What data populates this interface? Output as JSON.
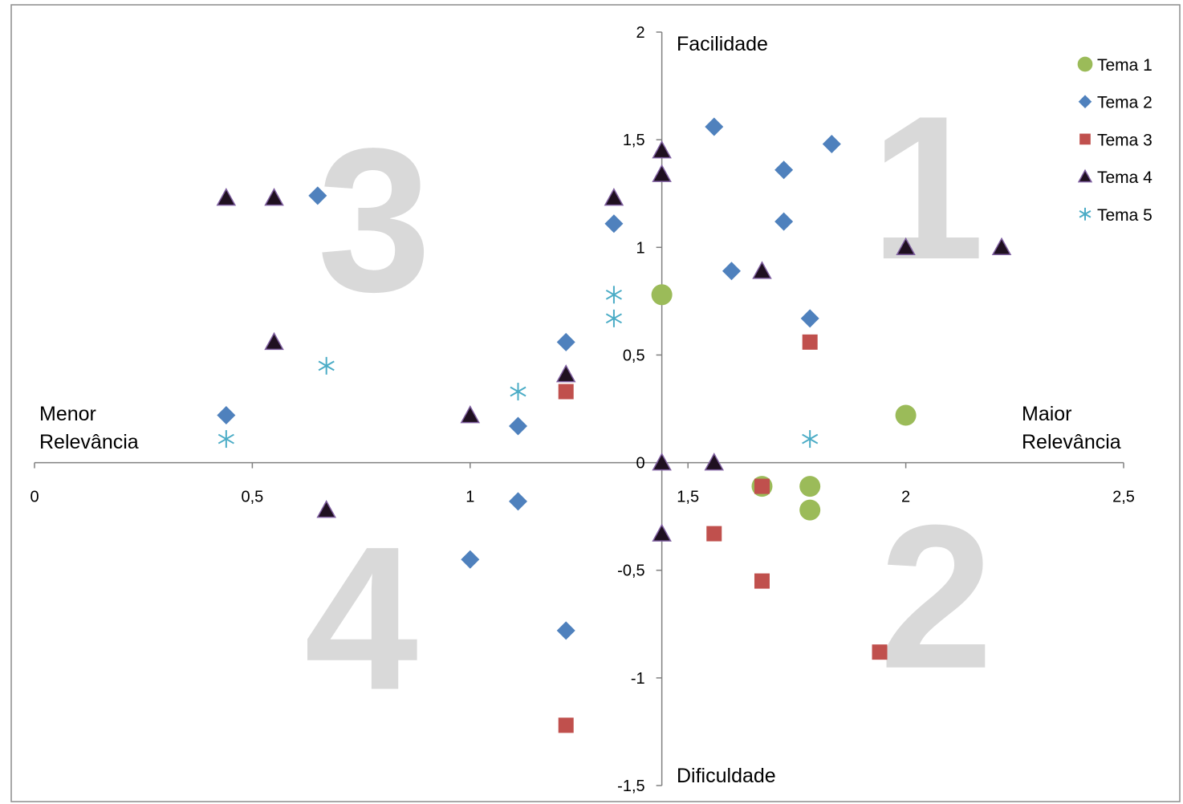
{
  "chart_data": {
    "type": "scatter",
    "title": "",
    "xlim": [
      0,
      2.5
    ],
    "ylim": [
      -1.5,
      2
    ],
    "x_ticks": [
      {
        "value": 0,
        "label": "0"
      },
      {
        "value": 0.5,
        "label": "0,5"
      },
      {
        "value": 1,
        "label": "1"
      },
      {
        "value": 1.5,
        "label": "1,5"
      },
      {
        "value": 2,
        "label": "2"
      },
      {
        "value": 2.5,
        "label": "2,5"
      }
    ],
    "y_ticks": [
      {
        "value": 2,
        "label": "2"
      },
      {
        "value": 1.5,
        "label": "1,5"
      },
      {
        "value": 1,
        "label": "1"
      },
      {
        "value": 0.5,
        "label": "0,5"
      },
      {
        "value": 0,
        "label": "0"
      },
      {
        "value": -0.5,
        "label": "-0,5"
      },
      {
        "value": -1,
        "label": "-1"
      },
      {
        "value": -1.5,
        "label": "-1,5"
      }
    ],
    "axis_crossing": {
      "x": 1.44,
      "y": 0
    },
    "annotations": {
      "top": "Facilidade",
      "bottom": "Dificuldade",
      "left_line1": "Menor",
      "left_line2": "Relevância",
      "right_line1": "Maior",
      "right_line2": "Relevância"
    },
    "quadrants": [
      {
        "label": "1",
        "x": 2.05,
        "y": 1.2
      },
      {
        "label": "2",
        "x": 2.07,
        "y": -0.7
      },
      {
        "label": "3",
        "x": 0.78,
        "y": 1.05
      },
      {
        "label": "4",
        "x": 0.75,
        "y": -0.8
      }
    ],
    "legend_position": "top-right",
    "grid": false,
    "series": [
      {
        "name": "Tema 1",
        "marker": "circle",
        "color": "#9bbb59",
        "points": [
          [
            1.44,
            0.78
          ],
          [
            2.0,
            0.22
          ],
          [
            1.67,
            -0.11
          ],
          [
            1.78,
            -0.11
          ],
          [
            1.78,
            -0.22
          ]
        ]
      },
      {
        "name": "Tema 2",
        "marker": "diamond",
        "color": "#4f81bd",
        "points": [
          [
            1.56,
            1.56
          ],
          [
            1.83,
            1.48
          ],
          [
            1.72,
            1.36
          ],
          [
            0.65,
            1.24
          ],
          [
            1.33,
            1.11
          ],
          [
            1.72,
            1.12
          ],
          [
            1.6,
            0.89
          ],
          [
            1.78,
            0.67
          ],
          [
            1.22,
            0.56
          ],
          [
            0.44,
            0.22
          ],
          [
            1.11,
            0.17
          ],
          [
            1.11,
            -0.18
          ],
          [
            1.0,
            -0.45
          ],
          [
            1.22,
            -0.78
          ]
        ]
      },
      {
        "name": "Tema 3",
        "marker": "square",
        "color": "#c0504d",
        "points": [
          [
            1.78,
            0.56
          ],
          [
            1.22,
            0.33
          ],
          [
            1.67,
            -0.11
          ],
          [
            1.56,
            -0.33
          ],
          [
            1.67,
            -0.55
          ],
          [
            1.94,
            -0.88
          ],
          [
            1.22,
            -1.22
          ]
        ]
      },
      {
        "name": "Tema 4",
        "marker": "triangle",
        "color": "#1f1020",
        "points": [
          [
            1.44,
            1.45
          ],
          [
            1.44,
            1.34
          ],
          [
            0.44,
            1.23
          ],
          [
            0.55,
            1.23
          ],
          [
            1.33,
            1.23
          ],
          [
            2.0,
            1.0
          ],
          [
            2.22,
            1.0
          ],
          [
            1.67,
            0.89
          ],
          [
            0.55,
            0.56
          ],
          [
            1.22,
            0.41
          ],
          [
            1.0,
            0.22
          ],
          [
            1.44,
            0.0
          ],
          [
            1.56,
            0.0
          ],
          [
            0.67,
            -0.22
          ],
          [
            1.44,
            -0.33
          ]
        ]
      },
      {
        "name": "Tema 5",
        "marker": "asterisk",
        "color": "#4bacc6",
        "points": [
          [
            1.33,
            0.78
          ],
          [
            1.33,
            0.67
          ],
          [
            0.67,
            0.45
          ],
          [
            1.11,
            0.33
          ],
          [
            0.44,
            0.11
          ],
          [
            1.78,
            0.11
          ]
        ]
      }
    ]
  }
}
